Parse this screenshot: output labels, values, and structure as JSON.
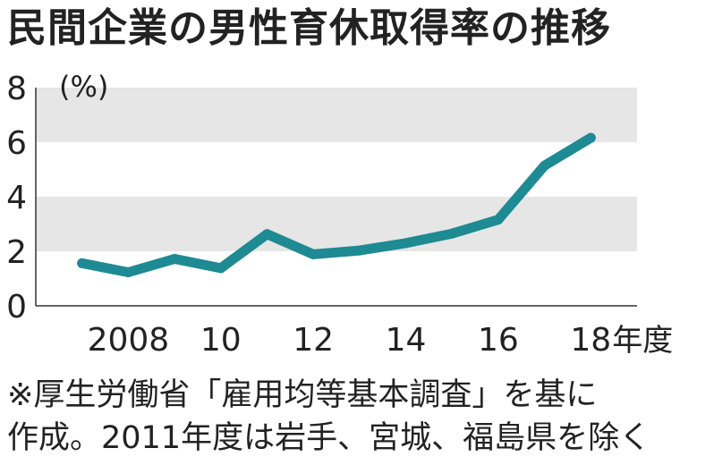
{
  "chart_data": {
    "type": "line",
    "title": "民間企業の男性育休取得率の推移",
    "unit_label": "(%)",
    "x": [
      2007,
      2008,
      2009,
      2010,
      2011,
      2012,
      2013,
      2014,
      2015,
      2016,
      2017,
      2018
    ],
    "series": [
      {
        "values": [
          1.56,
          1.23,
          1.72,
          1.38,
          2.63,
          1.89,
          2.03,
          2.3,
          2.65,
          3.16,
          5.14,
          6.16
        ],
        "color": "#1e8a93"
      }
    ],
    "xlim": [
      2006,
      2019
    ],
    "ylim": [
      0,
      8
    ],
    "y_ticks": [
      {
        "value": 0,
        "label": "0"
      },
      {
        "value": 2,
        "label": "2"
      },
      {
        "value": 4,
        "label": "4"
      },
      {
        "value": 6,
        "label": "6"
      },
      {
        "value": 8,
        "label": "8"
      }
    ],
    "x_ticks": [
      {
        "value": 2008,
        "label": "2008"
      },
      {
        "value": 2010,
        "label": "10"
      },
      {
        "value": 2012,
        "label": "12"
      },
      {
        "value": 2014,
        "label": "14"
      },
      {
        "value": 2016,
        "label": "16"
      },
      {
        "value": 2018,
        "label": "18"
      }
    ],
    "x_unit": "年度",
    "bands": [
      [
        2,
        4
      ],
      [
        6,
        8
      ]
    ],
    "band_color": "#e6e6e6",
    "notes": [
      "※厚生労働省「雇用均等基本調査」を基に",
      "作成。2011年度は岩手、宮城、福島県を除く"
    ]
  }
}
